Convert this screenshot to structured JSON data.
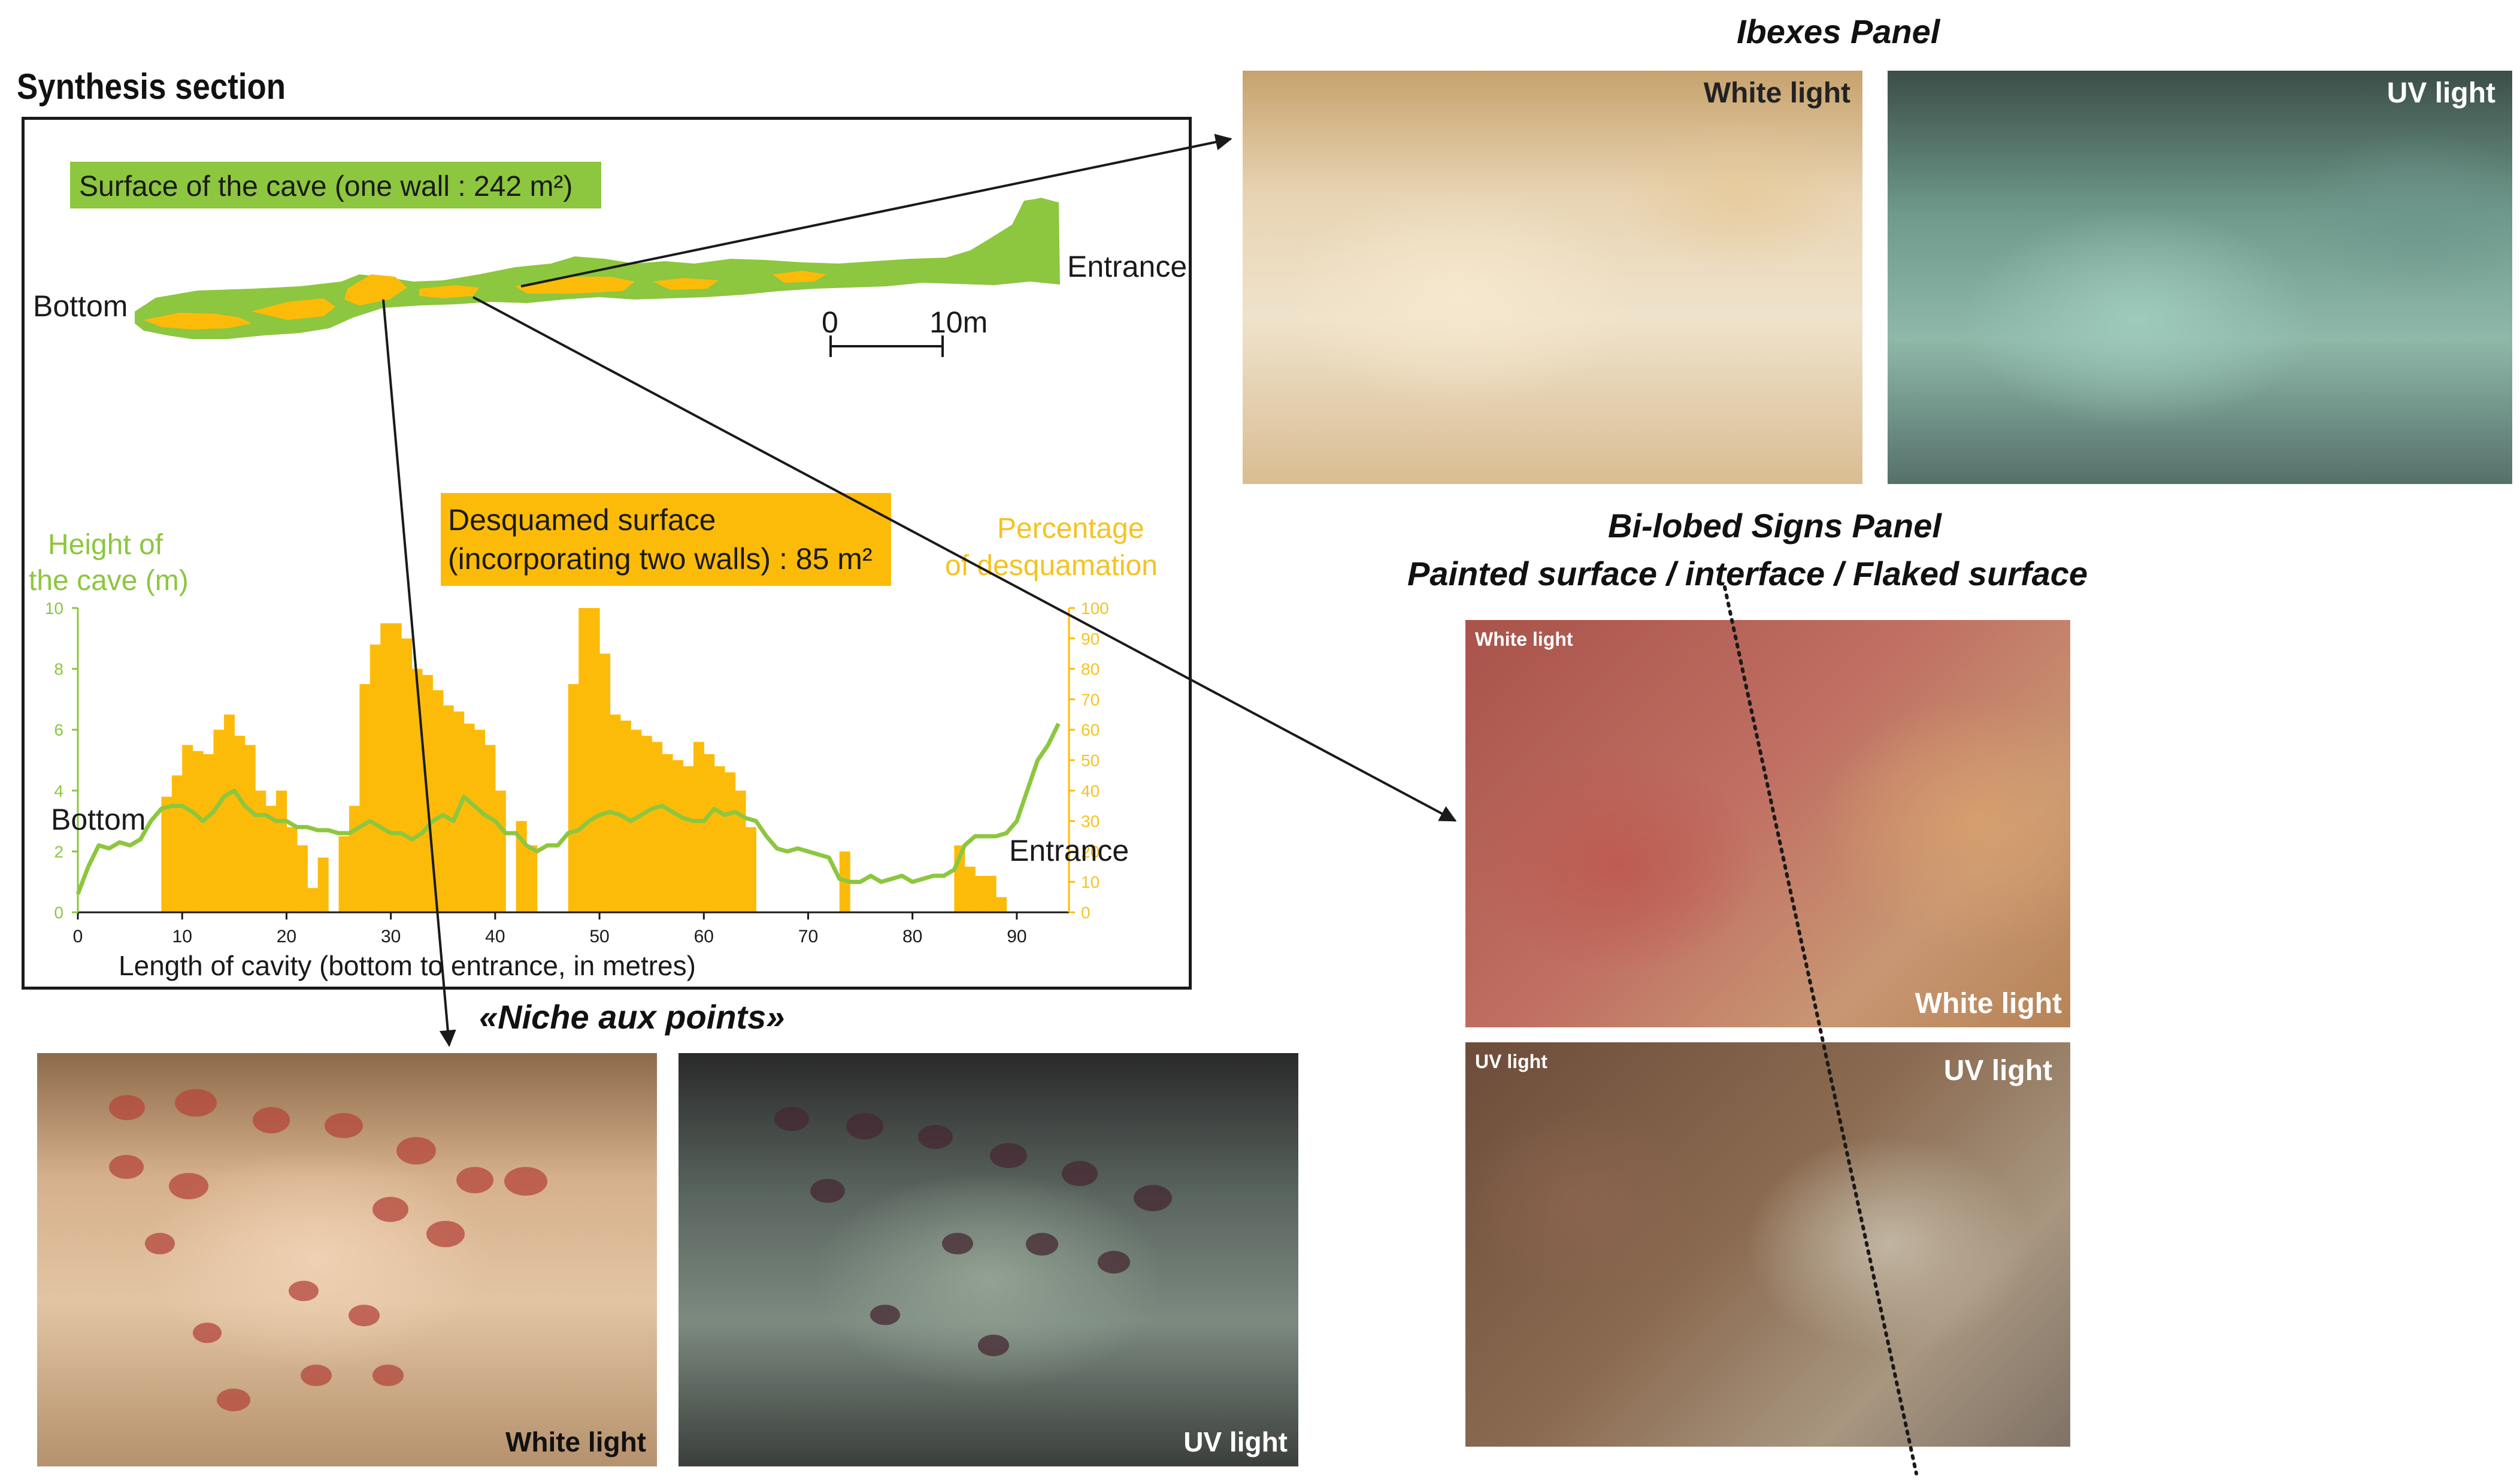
{
  "titles": {
    "synthesis": "Synthesis section",
    "ibexes": "Ibexes Panel",
    "bilobed": "Bi-lobed Signs Panel",
    "bilobed_sub": "Painted surface /  interface /  Flaked surface",
    "niche": "«Niche aux points»"
  },
  "section": {
    "surface_label": "Surface of the cave (one wall : 242 m²)",
    "bottom_label": "Bottom",
    "entrance_label": "Entrance",
    "scale_zero": "0",
    "scale_ten": "10m"
  },
  "legend": {
    "desquamed_line1": "Desquamed surface",
    "desquamed_line2": "(incorporating two walls) : 85 m²",
    "height_line1": "Height of",
    "height_line2": "the cave (m)",
    "percent_line1": "Percentage",
    "percent_line2": "of desquamation"
  },
  "photos": {
    "ibex_white": "White light",
    "ibex_uv": "UV light",
    "bilobed_white_small": "White light",
    "bilobed_white_large": "White light",
    "bilobed_uv_small": "UV light",
    "bilobed_uv_large": "UV light",
    "niche_white": "White light",
    "niche_uv": "UV light"
  },
  "colors": {
    "green": "#8dc63f",
    "orange": "#fdbb09",
    "pct_label": "#f5c320",
    "line": "#1a1a1a"
  },
  "chart_data": {
    "type": "area",
    "xlabel": "Length of cavity (bottom to entrance, in metres)",
    "xlim": [
      0,
      95
    ],
    "xticks": [
      0,
      10,
      20,
      30,
      40,
      50,
      60,
      70,
      80,
      90
    ],
    "y_left": {
      "ylim": [
        0,
        10
      ],
      "ticks": [
        0,
        2,
        4,
        6,
        8,
        10
      ]
    },
    "y_right": {
      "ylim": [
        0,
        100
      ],
      "ticks": [
        0,
        10,
        20,
        30,
        40,
        50,
        60,
        70,
        80,
        90,
        100
      ]
    },
    "annotations": {
      "bottom": "Bottom",
      "entrance": "Entrance"
    },
    "series": [
      {
        "axis": "right",
        "color": "#fdbb09",
        "x": [
          7.5,
          8,
          9,
          10,
          11,
          12,
          13,
          14,
          15,
          16,
          17,
          18,
          19,
          20,
          21,
          22,
          23,
          24,
          25,
          26,
          27,
          28,
          29,
          30,
          31,
          32,
          33,
          34,
          35,
          36,
          37,
          38,
          39,
          40,
          41,
          42,
          43,
          44,
          45,
          46,
          47,
          48,
          49,
          50,
          51,
          52,
          53,
          54,
          55,
          56,
          57,
          58,
          59,
          60,
          61,
          62,
          63,
          64,
          65,
          66,
          67,
          68,
          69,
          70,
          71,
          72,
          73,
          74,
          75,
          83,
          84,
          85,
          86,
          87,
          88,
          89
        ],
        "values": [
          0,
          38,
          45,
          55,
          53,
          52,
          60,
          65,
          58,
          55,
          40,
          35,
          40,
          28,
          22,
          8,
          18,
          0,
          25,
          35,
          75,
          88,
          95,
          95,
          90,
          80,
          78,
          73,
          68,
          66,
          62,
          60,
          55,
          40,
          0,
          30,
          22,
          0,
          0,
          0,
          75,
          100,
          100,
          85,
          65,
          63,
          60,
          58,
          56,
          52,
          50,
          48,
          56,
          52,
          48,
          46,
          40,
          28,
          0,
          0,
          0,
          0,
          0,
          0,
          0,
          0,
          20,
          0,
          0,
          0,
          22,
          15,
          12,
          12,
          5,
          0
        ]
      },
      {
        "axis": "left",
        "color": "#8dc63f",
        "x": [
          0,
          1,
          2,
          3,
          4,
          5,
          6,
          7,
          8,
          9,
          10,
          11,
          12,
          13,
          14,
          15,
          16,
          17,
          18,
          19,
          20,
          21,
          22,
          23,
          24,
          25,
          26,
          27,
          28,
          29,
          30,
          31,
          32,
          33,
          34,
          35,
          36,
          37,
          38,
          39,
          40,
          41,
          42,
          43,
          44,
          45,
          46,
          47,
          48,
          49,
          50,
          51,
          52,
          53,
          54,
          55,
          56,
          57,
          58,
          59,
          60,
          61,
          62,
          63,
          64,
          65,
          66,
          67,
          68,
          69,
          70,
          71,
          72,
          73,
          74,
          75,
          76,
          77,
          78,
          79,
          80,
          81,
          82,
          83,
          84,
          85,
          86,
          87,
          88,
          89,
          90,
          91,
          92,
          93,
          94
        ],
        "values": [
          0.6,
          1.5,
          2.2,
          2.1,
          2.3,
          2.2,
          2.4,
          3.0,
          3.4,
          3.5,
          3.5,
          3.3,
          3.0,
          3.3,
          3.8,
          4.0,
          3.5,
          3.2,
          3.2,
          3.0,
          3.0,
          2.8,
          2.8,
          2.7,
          2.7,
          2.6,
          2.6,
          2.8,
          3.0,
          2.8,
          2.6,
          2.6,
          2.4,
          2.6,
          3.0,
          3.2,
          3.0,
          3.8,
          3.5,
          3.2,
          3.0,
          2.6,
          2.6,
          2.2,
          2.0,
          2.2,
          2.2,
          2.6,
          2.7,
          3.0,
          3.2,
          3.3,
          3.2,
          3.0,
          3.2,
          3.4,
          3.5,
          3.3,
          3.1,
          3.0,
          3.0,
          3.4,
          3.2,
          3.3,
          3.1,
          3.0,
          2.5,
          2.1,
          2.0,
          2.1,
          2.0,
          1.9,
          1.8,
          1.1,
          1.0,
          1.0,
          1.2,
          1.0,
          1.1,
          1.2,
          1.0,
          1.1,
          1.2,
          1.2,
          1.4,
          2.2,
          2.5,
          2.5,
          2.5,
          2.6,
          3.0,
          4.0,
          5.0,
          5.5,
          6.2
        ]
      }
    ]
  }
}
